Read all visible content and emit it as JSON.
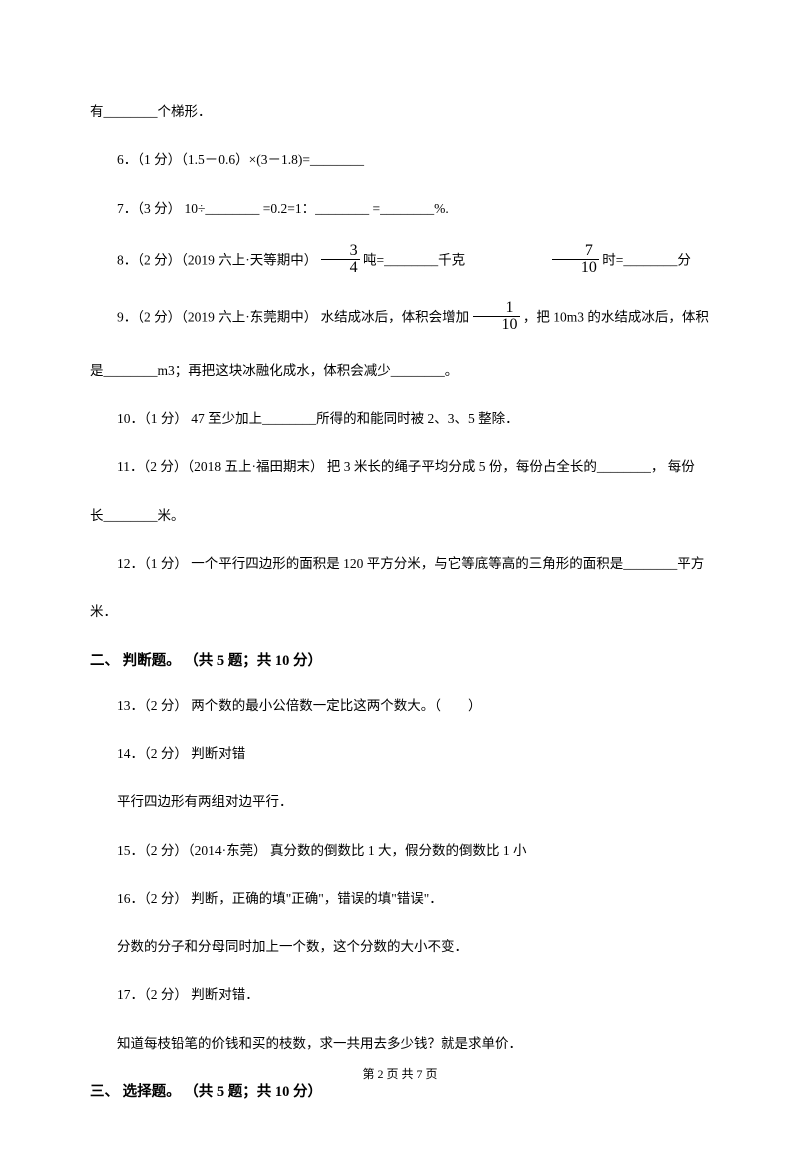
{
  "questions": {
    "q5_tail": "有________个梯形．",
    "q6": "6．（1 分）（1.5－0.6）×(3－1.8)=________",
    "q7": "7．（3 分） 10÷________ =0.2=1：________ =________%.",
    "q8_prefix": "8．（2 分）（2019 六上·天等期中）",
    "q8_frac1_num": "3",
    "q8_frac1_den": "4",
    "q8_mid1": " 吨=________千克",
    "q8_frac2_num": "7",
    "q8_frac2_den": "10",
    "q8_mid2": " 时=________分",
    "q9_prefix": "9．（2 分）（2019 六上·东莞期中） 水结成冰后，体积会增加 ",
    "q9_frac_num": "1",
    "q9_frac_den": "10",
    "q9_suffix": " ，把 10m3 的水结成冰后，体积",
    "q9_line2": "是________m3；再把这块冰融化成水，体积会减少________。",
    "q10": "10．（1 分） 47 至少加上________所得的和能同时被 2、3、5 整除．",
    "q11_line1": "11．（2 分）（2018 五上·福田期末） 把 3 米长的绳子平均分成 5 份，每份占全长的________， 每份",
    "q11_line2": "长________米。",
    "q12_line1": "12．（1 分） 一个平行四边形的面积是 120 平方分米，与它等底等高的三角形的面积是________平方",
    "q12_line2": "米．"
  },
  "section2": {
    "heading": "二、 判断题。 （共 5 题；共 10 分）",
    "q13": "13．（2 分） 两个数的最小公倍数一定比这两个数大。（　　）",
    "q14_line1": "14．（2 分） 判断对错",
    "q14_line2": "平行四边形有两组对边平行．",
    "q15": "15．（2 分）（2014·东莞） 真分数的倒数比 1 大，假分数的倒数比 1 小",
    "q16_line1": "16．（2 分） 判断，正确的填\"正确\"，错误的填\"错误\"．",
    "q16_line2": "分数的分子和分母同时加上一个数，这个分数的大小不变．",
    "q17_line1": "17．（2 分） 判断对错．",
    "q17_line2": "知道每枝铅笔的价钱和买的枝数，求一共用去多少钱？就是求单价．"
  },
  "section3": {
    "heading": "三、 选择题。 （共 5 题；共 10 分）"
  },
  "footer": "第 2 页 共 7 页"
}
